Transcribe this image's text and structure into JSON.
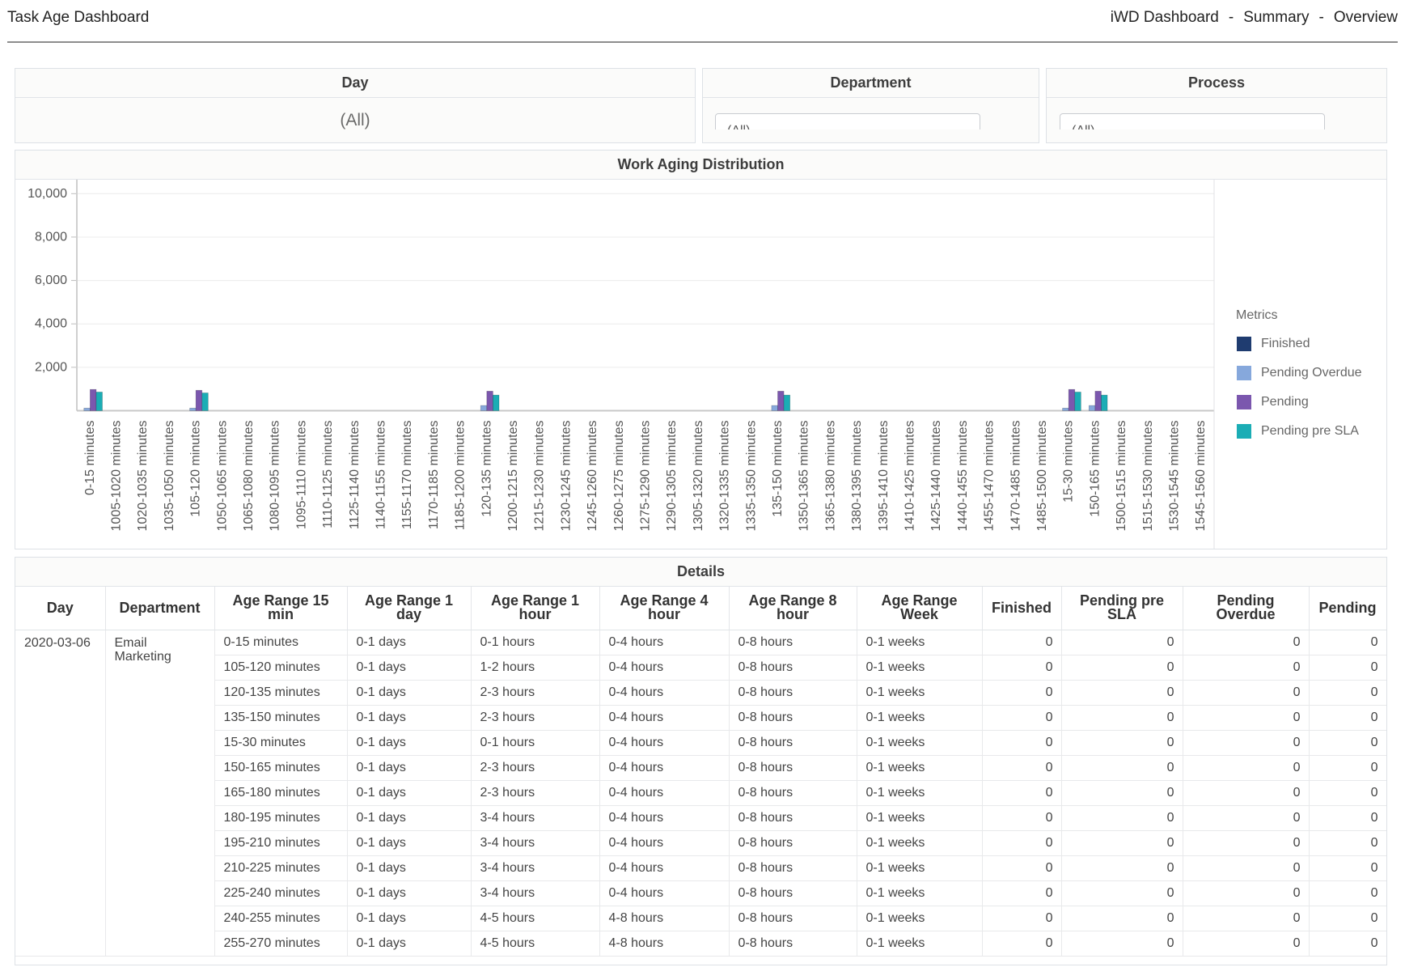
{
  "header": {
    "title": "Task Age Dashboard",
    "breadcrumb": [
      "iWD Dashboard",
      "Summary",
      "Overview"
    ],
    "separator": "-"
  },
  "filters": {
    "day": {
      "label": "Day",
      "value": "(All)"
    },
    "department": {
      "label": "Department",
      "value": "(All)"
    },
    "process": {
      "label": "Process",
      "value": "(All)"
    }
  },
  "chart_data": {
    "type": "bar",
    "title": "Work Aging Distribution",
    "legend_title": "Metrics",
    "legend_position": "right",
    "grid": true,
    "ylim": [
      0,
      10000
    ],
    "yticks": [
      2000,
      4000,
      6000,
      8000,
      10000
    ],
    "ytick_labels": [
      "2,000",
      "4,000",
      "6,000",
      "8,000",
      "10,000"
    ],
    "categories": [
      "0-15 minutes",
      "1005-1020 minutes",
      "1020-1035 minutes",
      "1035-1050 minutes",
      "105-120 minutes",
      "1050-1065 minutes",
      "1065-1080 minutes",
      "1080-1095 minutes",
      "1095-1110 minutes",
      "1110-1125 minutes",
      "1125-1140 minutes",
      "1140-1155 minutes",
      "1155-1170 minutes",
      "1170-1185 minutes",
      "1185-1200 minutes",
      "120-135 minutes",
      "1200-1215 minutes",
      "1215-1230 minutes",
      "1230-1245 minutes",
      "1245-1260 minutes",
      "1260-1275 minutes",
      "1275-1290 minutes",
      "1290-1305 minutes",
      "1305-1320 minutes",
      "1320-1335 minutes",
      "1335-1350 minutes",
      "135-150 minutes",
      "1350-1365 minutes",
      "1365-1380 minutes",
      "1380-1395 minutes",
      "1395-1410 minutes",
      "1410-1425 minutes",
      "1425-1440 minutes",
      "1440-1455 minutes",
      "1455-1470 minutes",
      "1470-1485 minutes",
      "1485-1500 minutes",
      "15-30 minutes",
      "150-165 minutes",
      "1500-1515 minutes",
      "1515-1530 minutes",
      "1530-1545 minutes",
      "1545-1560 minutes"
    ],
    "series": [
      {
        "name": "Finished",
        "color": "#1f3c70",
        "values": [
          0,
          0,
          0,
          0,
          0,
          0,
          0,
          0,
          0,
          0,
          0,
          0,
          0,
          0,
          0,
          0,
          0,
          0,
          0,
          0,
          0,
          0,
          0,
          0,
          0,
          0,
          0,
          0,
          0,
          0,
          0,
          0,
          0,
          0,
          0,
          0,
          0,
          0,
          0,
          0,
          0,
          0,
          0
        ]
      },
      {
        "name": "Pending Overdue",
        "color": "#86a8dc",
        "values": [
          120,
          0,
          0,
          0,
          120,
          0,
          0,
          0,
          0,
          0,
          0,
          0,
          0,
          0,
          0,
          240,
          0,
          0,
          0,
          0,
          0,
          0,
          0,
          0,
          0,
          0,
          240,
          0,
          0,
          0,
          0,
          0,
          0,
          0,
          0,
          0,
          0,
          120,
          240,
          0,
          0,
          0,
          0
        ]
      },
      {
        "name": "Pending",
        "color": "#7b57ae",
        "values": [
          980,
          0,
          0,
          0,
          940,
          0,
          0,
          0,
          0,
          0,
          0,
          0,
          0,
          0,
          0,
          900,
          0,
          0,
          0,
          0,
          0,
          0,
          0,
          0,
          0,
          0,
          900,
          0,
          0,
          0,
          0,
          0,
          0,
          0,
          0,
          0,
          0,
          980,
          900,
          0,
          0,
          0,
          0
        ]
      },
      {
        "name": "Pending pre SLA",
        "color": "#1badb5",
        "values": [
          860,
          0,
          0,
          0,
          820,
          0,
          0,
          0,
          0,
          0,
          0,
          0,
          0,
          0,
          0,
          720,
          0,
          0,
          0,
          0,
          0,
          0,
          0,
          0,
          0,
          0,
          720,
          0,
          0,
          0,
          0,
          0,
          0,
          0,
          0,
          0,
          0,
          860,
          720,
          0,
          0,
          0,
          0
        ]
      }
    ]
  },
  "details": {
    "title": "Details",
    "columns": [
      "Day",
      "Department",
      "Age Range 15 min",
      "Age Range 1 day",
      "Age Range 1 hour",
      "Age Range 4 hour",
      "Age Range 8 hour",
      "Age Range Week",
      "Finished",
      "Pending pre SLA",
      "Pending Overdue",
      "Pending"
    ],
    "day": "2020-03-06",
    "department": "Email Marketing",
    "rows": [
      [
        "0-15 minutes",
        "0-1 days",
        "0-1 hours",
        "0-4 hours",
        "0-8 hours",
        "0-1 weeks",
        0,
        0,
        0,
        0
      ],
      [
        "105-120 minutes",
        "0-1 days",
        "1-2 hours",
        "0-4 hours",
        "0-8 hours",
        "0-1 weeks",
        0,
        0,
        0,
        0
      ],
      [
        "120-135 minutes",
        "0-1 days",
        "2-3 hours",
        "0-4 hours",
        "0-8 hours",
        "0-1 weeks",
        0,
        0,
        0,
        0
      ],
      [
        "135-150 minutes",
        "0-1 days",
        "2-3 hours",
        "0-4 hours",
        "0-8 hours",
        "0-1 weeks",
        0,
        0,
        0,
        0
      ],
      [
        "15-30 minutes",
        "0-1 days",
        "0-1 hours",
        "0-4 hours",
        "0-8 hours",
        "0-1 weeks",
        0,
        0,
        0,
        0
      ],
      [
        "150-165 minutes",
        "0-1 days",
        "2-3 hours",
        "0-4 hours",
        "0-8 hours",
        "0-1 weeks",
        0,
        0,
        0,
        0
      ],
      [
        "165-180 minutes",
        "0-1 days",
        "2-3 hours",
        "0-4 hours",
        "0-8 hours",
        "0-1 weeks",
        0,
        0,
        0,
        0
      ],
      [
        "180-195 minutes",
        "0-1 days",
        "3-4 hours",
        "0-4 hours",
        "0-8 hours",
        "0-1 weeks",
        0,
        0,
        0,
        0
      ],
      [
        "195-210 minutes",
        "0-1 days",
        "3-4 hours",
        "0-4 hours",
        "0-8 hours",
        "0-1 weeks",
        0,
        0,
        0,
        0
      ],
      [
        "210-225 minutes",
        "0-1 days",
        "3-4 hours",
        "0-4 hours",
        "0-8 hours",
        "0-1 weeks",
        0,
        0,
        0,
        0
      ],
      [
        "225-240 minutes",
        "0-1 days",
        "3-4 hours",
        "0-4 hours",
        "0-8 hours",
        "0-1 weeks",
        0,
        0,
        0,
        0
      ],
      [
        "240-255 minutes",
        "0-1 days",
        "4-5 hours",
        "4-8 hours",
        "0-8 hours",
        "0-1 weeks",
        0,
        0,
        0,
        0
      ],
      [
        "255-270 minutes",
        "0-1 days",
        "4-5 hours",
        "4-8 hours",
        "0-8 hours",
        "0-1 weeks",
        0,
        0,
        0,
        0
      ]
    ]
  }
}
